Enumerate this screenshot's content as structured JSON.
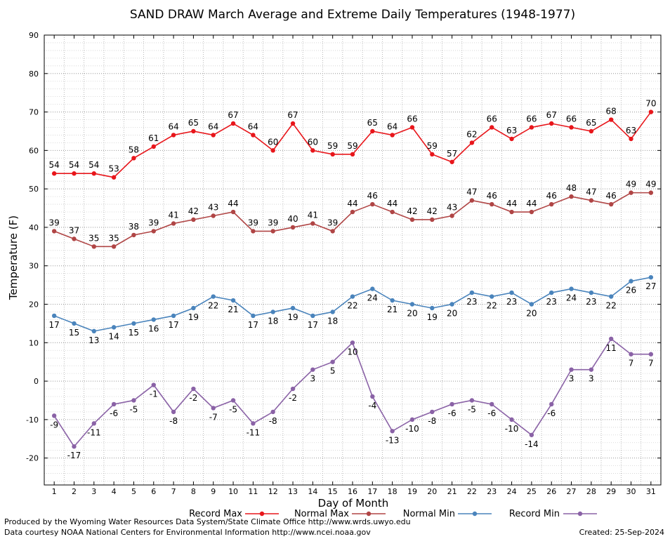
{
  "chart_data": {
    "type": "line",
    "title": "SAND DRAW March Average and Extreme Daily Temperatures (1948-1977)",
    "xlabel": "Day of Month",
    "ylabel": "Temperature (F)",
    "ylim": [
      -27,
      90
    ],
    "y_ticks": [
      -20,
      -10,
      0,
      10,
      20,
      30,
      40,
      50,
      60,
      70,
      80,
      90
    ],
    "grid": true,
    "legend_position": "bottom",
    "x": [
      1,
      2,
      3,
      4,
      5,
      6,
      7,
      8,
      9,
      10,
      11,
      12,
      13,
      14,
      15,
      16,
      17,
      18,
      19,
      20,
      21,
      22,
      23,
      24,
      25,
      26,
      27,
      28,
      29,
      30,
      31
    ],
    "series": [
      {
        "name": "Record Max",
        "color": "#e8161b",
        "values": [
          54,
          54,
          54,
          53,
          58,
          61,
          64,
          65,
          64,
          67,
          64,
          60,
          67,
          60,
          59,
          59,
          65,
          64,
          66,
          59,
          57,
          62,
          66,
          63,
          66,
          67,
          66,
          65,
          68,
          63,
          70
        ]
      },
      {
        "name": "Normal Max",
        "color": "#b04545",
        "values": [
          39,
          37,
          35,
          35,
          38,
          39,
          41,
          42,
          43,
          44,
          39,
          39,
          40,
          41,
          39,
          44,
          46,
          44,
          42,
          42,
          43,
          47,
          46,
          44,
          44,
          46,
          48,
          47,
          46,
          49,
          49
        ]
      },
      {
        "name": "Normal Min",
        "color": "#4a84bc",
        "values": [
          17,
          15,
          13,
          14,
          15,
          16,
          17,
          19,
          22,
          21,
          17,
          18,
          19,
          17,
          18,
          22,
          24,
          21,
          20,
          19,
          20,
          23,
          22,
          23,
          20,
          23,
          24,
          23,
          22,
          26,
          27
        ]
      },
      {
        "name": "Record Min",
        "color": "#8a62a6",
        "values": [
          -9,
          -17,
          -11,
          -6,
          -5,
          -1,
          -8,
          -2,
          -7,
          -5,
          -11,
          -8,
          -2,
          3,
          5,
          10,
          -4,
          -13,
          -10,
          -8,
          -6,
          -5,
          -6,
          -10,
          -14,
          -6,
          3,
          3,
          11,
          7,
          7
        ]
      }
    ]
  },
  "footer": {
    "produced_by": "Produced by the Wyoming Water Resources Data System/State Climate Office http://www.wrds.uwyo.edu",
    "data_courtesy": "Data courtesy NOAA National Centers for Environmental Information http://www.ncei.noaa.gov",
    "created": "Created:  25-Sep-2024"
  }
}
